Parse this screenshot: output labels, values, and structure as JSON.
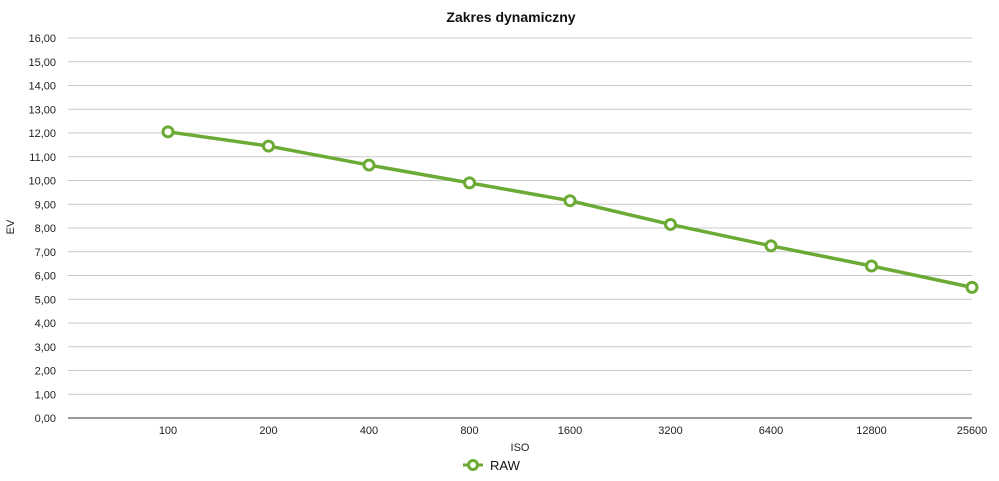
{
  "chart_data": {
    "type": "line",
    "title": "Zakres dynamiczny",
    "xlabel": "ISO",
    "ylabel": "EV",
    "categories": [
      "100",
      "200",
      "400",
      "800",
      "1600",
      "3200",
      "6400",
      "12800",
      "25600"
    ],
    "series": [
      {
        "name": "RAW",
        "values": [
          12.05,
          11.45,
          10.65,
          9.9,
          9.15,
          8.15,
          7.25,
          6.4,
          5.5
        ],
        "color": "#6aaa35"
      }
    ],
    "ylim": [
      0,
      16
    ],
    "yticks": [
      "0,00",
      "1,00",
      "2,00",
      "3,00",
      "4,00",
      "5,00",
      "6,00",
      "7,00",
      "8,00",
      "9,00",
      "10,00",
      "11,00",
      "12,00",
      "13,00",
      "14,00",
      "15,00",
      "16,00"
    ],
    "grid": true,
    "legend": "bottom-center"
  }
}
